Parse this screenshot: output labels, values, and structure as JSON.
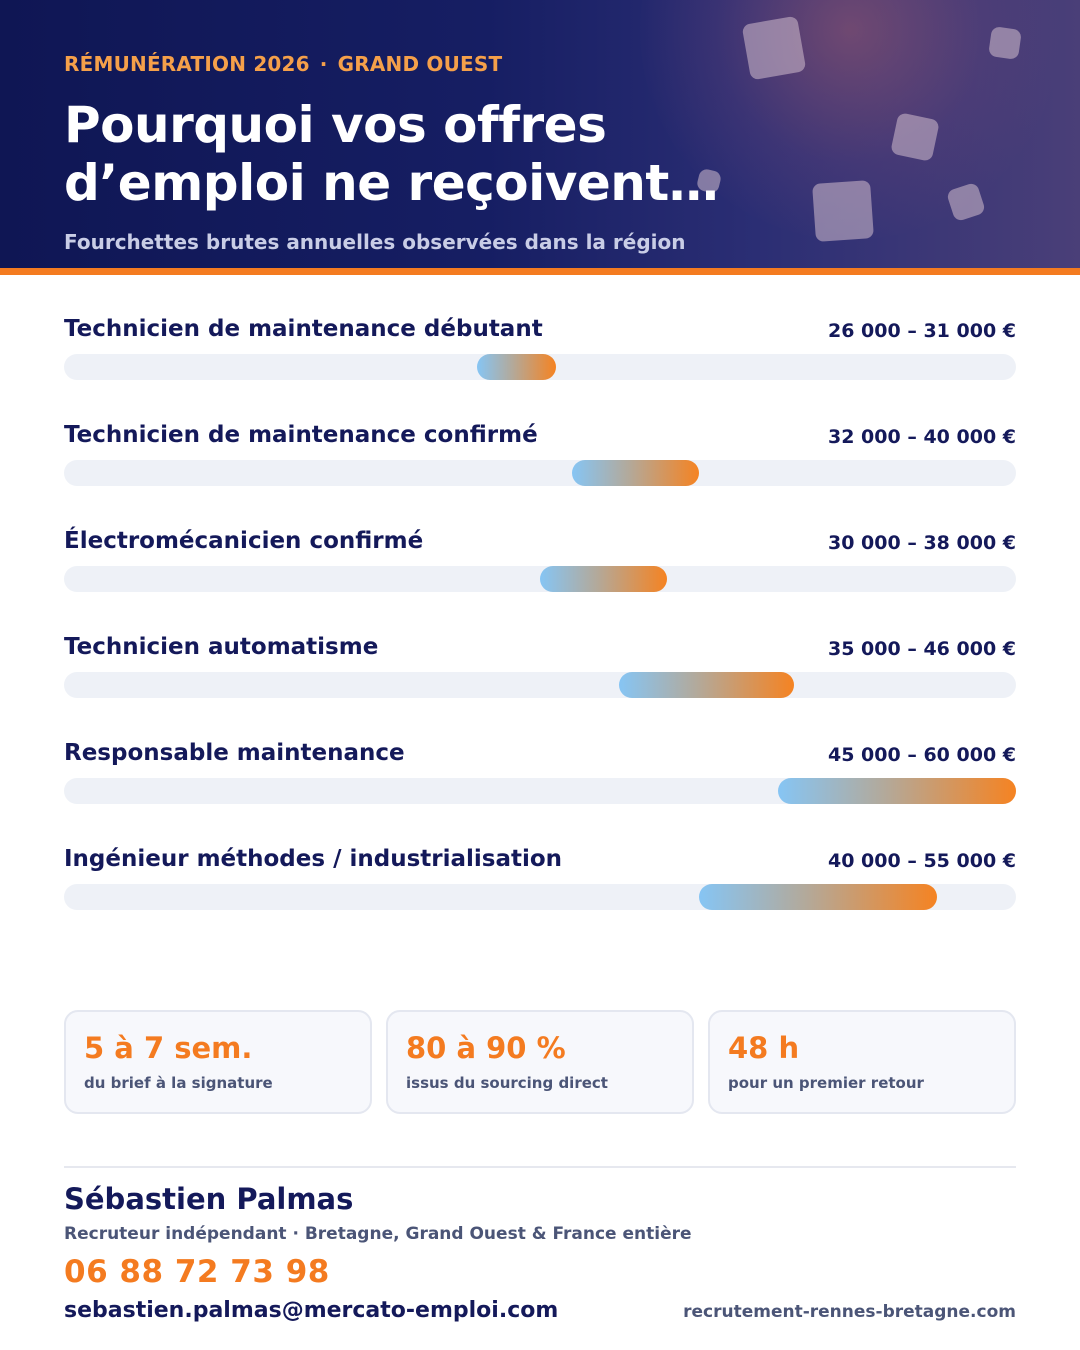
{
  "header": {
    "eyebrow_left": "RÉMUNÉRATION 2026",
    "eyebrow_sep": "·",
    "eyebrow_right": "GRAND OUEST",
    "title_line1": "Pourquoi vos offres",
    "title_line2": "d’emploi ne reçoivent…",
    "subtitle": "Fourchettes brutes annuelles observées dans la région"
  },
  "salary_scale": {
    "min": 0,
    "max": 60000,
    "unit": "€"
  },
  "jobs": [
    {
      "label": "Technicien de maintenance débutant",
      "range_text": "26 000 – 31 000 €",
      "min": 26000,
      "max": 31000
    },
    {
      "label": "Technicien de maintenance confirmé",
      "range_text": "32 000 – 40 000 €",
      "min": 32000,
      "max": 40000
    },
    {
      "label": "Électromécanicien confirmé",
      "range_text": "30 000 – 38 000 €",
      "min": 30000,
      "max": 38000
    },
    {
      "label": "Technicien automatisme",
      "range_text": "35 000 – 46 000 €",
      "min": 35000,
      "max": 46000
    },
    {
      "label": "Responsable maintenance",
      "range_text": "45 000 – 60 000 €",
      "min": 45000,
      "max": 60000
    },
    {
      "label": "Ingénieur méthodes / industrialisation",
      "range_text": "40 000 – 55 000 €",
      "min": 40000,
      "max": 55000
    }
  ],
  "stats": [
    {
      "value": "5 à 7 sem.",
      "caption": "du brief à la signature"
    },
    {
      "value": "80 à 90 %",
      "caption": "issus du sourcing direct"
    },
    {
      "value": "48 h",
      "caption": "pour un premier retour"
    }
  ],
  "contact": {
    "name": "Sébastien Palmas",
    "role": "Recruteur indépendant · Bretagne, Grand Ouest & France entière",
    "phone": "06 88 72 73 98",
    "email": "sebastien.palmas@mercato-emploi.com",
    "website": "recrutement-rennes-bretagne.com"
  },
  "colors": {
    "navy": "#14195a",
    "accent_orange": "#f47b20",
    "bar_start": "#86c5f4",
    "bar_end": "#f58322"
  }
}
